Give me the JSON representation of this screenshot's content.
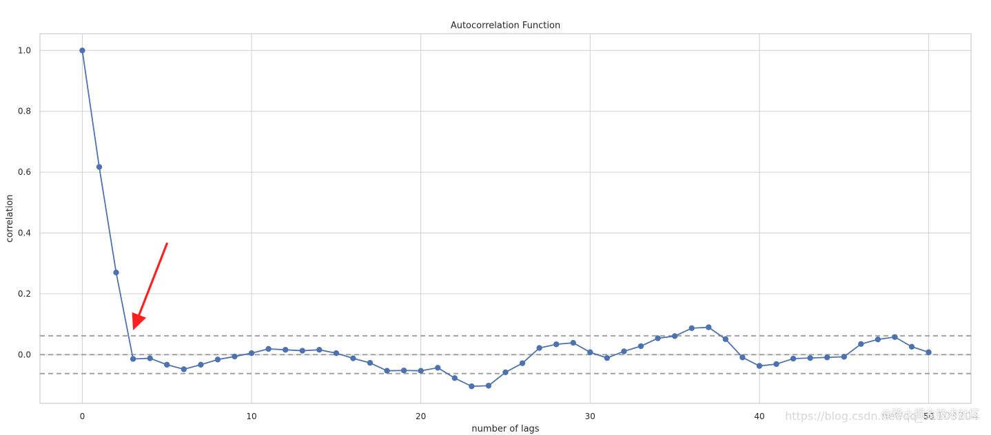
{
  "chart_data": {
    "type": "line",
    "title": "Autocorrelation Function",
    "xlabel": "number of lags",
    "ylabel": "correlation",
    "xlim": [
      -2.5,
      52.5
    ],
    "ylim": [
      -0.16,
      1.055
    ],
    "xticks": [
      0,
      10,
      20,
      30,
      40,
      50
    ],
    "yticks": [
      0.0,
      0.2,
      0.4,
      0.6,
      0.8,
      1.0
    ],
    "ytick_labels": [
      "0.0",
      "0.2",
      "0.4",
      "0.6",
      "0.8",
      "1.0"
    ],
    "grid": true,
    "series": [
      {
        "x": [
          0,
          1,
          2,
          3,
          4,
          5,
          6,
          7,
          8,
          9,
          10,
          11,
          12,
          13,
          14,
          15,
          16,
          17,
          18,
          19,
          20,
          21,
          22,
          23,
          24,
          25,
          26,
          27,
          28,
          29,
          30,
          31,
          32,
          33,
          34,
          35,
          36,
          37,
          38,
          39,
          40,
          41,
          42,
          43,
          44,
          45,
          46,
          47,
          48,
          49,
          50
        ],
        "values": [
          1.0,
          0.617,
          0.27,
          -0.014,
          -0.012,
          -0.033,
          -0.048,
          -0.033,
          -0.016,
          -0.006,
          0.005,
          0.019,
          0.016,
          0.013,
          0.016,
          0.005,
          -0.012,
          -0.027,
          -0.053,
          -0.052,
          -0.053,
          -0.043,
          -0.077,
          -0.104,
          -0.102,
          -0.058,
          -0.028,
          0.022,
          0.034,
          0.039,
          0.008,
          -0.011,
          0.011,
          0.028,
          0.054,
          0.061,
          0.087,
          0.09,
          0.051,
          -0.009,
          -0.037,
          -0.031,
          -0.013,
          -0.011,
          -0.009,
          -0.007,
          0.035,
          0.05,
          0.058,
          0.026,
          0.008
        ],
        "color": "#4c72b0"
      }
    ],
    "reference_lines": [
      {
        "y": 0.0621,
        "style": "dashed",
        "color": "#a0a0a0"
      },
      {
        "y": 0.0,
        "style": "dashed",
        "color": "#a0a0a0"
      },
      {
        "y": -0.0621,
        "style": "dashed",
        "color": "#a0a0a0"
      }
    ],
    "annotations": [
      {
        "type": "arrow",
        "from": [
          5,
          0.365
        ],
        "to": [
          3,
          0.08
        ],
        "color": "#ff1f1f"
      }
    ]
  },
  "watermark": {
    "csdn": "https://blog.csdn.net/qq_41103204",
    "juejin": "@稀土掘金技术社区"
  }
}
